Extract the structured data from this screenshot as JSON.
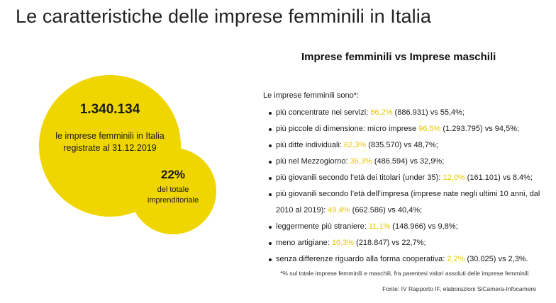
{
  "title": "Le caratteristiche delle imprese femminili in Italia",
  "colors": {
    "accent": "#f0d600",
    "highlight": "#e8c800"
  },
  "big_circle": {
    "number": "1.340.134",
    "description": "le imprese femminili in Italia registrate al 31.12.2019"
  },
  "small_circle": {
    "number": "22%",
    "description": "del totale imprenditoriale"
  },
  "panel": {
    "title": "Imprese femminili vs Imprese maschili",
    "intro": "Le imprese femminili sono*:",
    "items": [
      {
        "before": "più concentrate nei servizi: ",
        "highlight": "66,2%",
        "after": " (886.931) vs 55,4%;"
      },
      {
        "before": "più piccole di dimensione: micro imprese ",
        "highlight": "96,5%",
        "after": " (1.293.795) vs 94,5%;"
      },
      {
        "before": "più ditte individuali: ",
        "highlight": "62,3%",
        "after": " (835.570) vs 48,7%;"
      },
      {
        "before": "più nel Mezzogiorno: ",
        "highlight": "36,3%",
        "after": " (486.594) vs 32,9%;"
      },
      {
        "before": "più giovanili secondo l’età dei titolari (under 35): ",
        "highlight": "12,0%",
        "after": " (161.101) vs 8,4%;"
      },
      {
        "before": "più giovanili secondo l’età dell’impresa (imprese nate negli ultimi 10 anni, dal 2010 al 2019): ",
        "highlight": "49,4%",
        "after": " (662.586) vs 40,4%;"
      },
      {
        "before": "leggermente più straniere: ",
        "highlight": "11,1%",
        "after": " (148.966) vs 9,8%;"
      },
      {
        "before": "meno artigiane: ",
        "highlight": "16,3%",
        "after": " (218.847) vs 22,7%;"
      },
      {
        "before": "senza differenze riguardo alla forma cooperativa: ",
        "highlight": "2,2%",
        "after": " (30.025) vs 2,3%."
      }
    ],
    "note": "*% sul totale imprese femminili e maschili, fra parentesi valori assoluti delle imprese femminili",
    "source": "Fonte: IV Rapporto IF, elaborazioni SiCamera-Infocamere"
  }
}
